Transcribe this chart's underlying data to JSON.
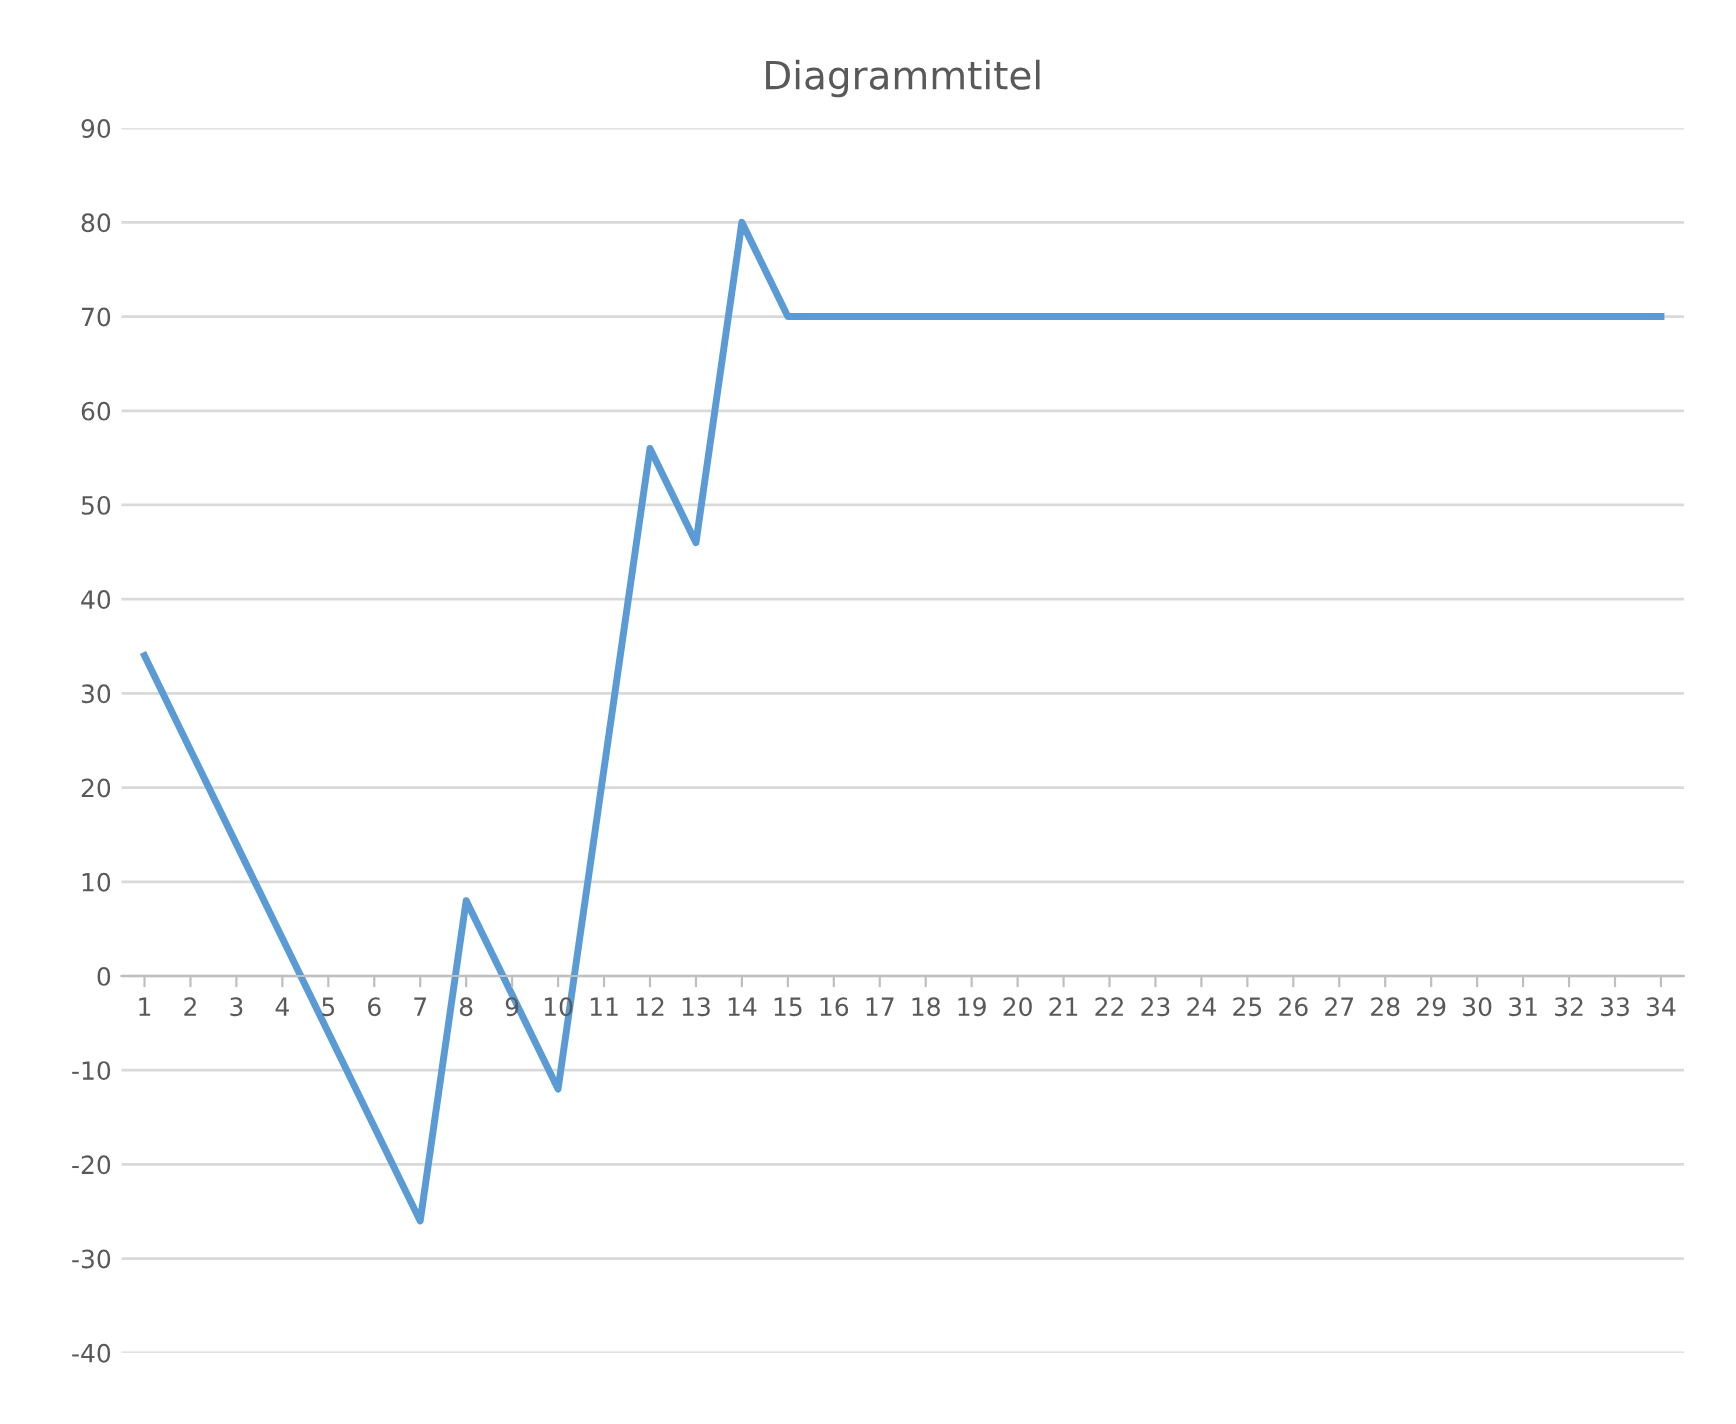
{
  "chart_data": {
    "type": "line",
    "title": "Diagrammtitel",
    "categories": [
      "1",
      "2",
      "3",
      "4",
      "5",
      "6",
      "7",
      "8",
      "9",
      "10",
      "11",
      "12",
      "13",
      "14",
      "15",
      "16",
      "17",
      "18",
      "19",
      "20",
      "21",
      "22",
      "23",
      "24",
      "25",
      "26",
      "27",
      "28",
      "29",
      "30",
      "31",
      "32",
      "33",
      "34"
    ],
    "series": [
      {
        "color": "#5b9bd5",
        "values": [
          34,
          24,
          14,
          4,
          -6,
          -16,
          -26,
          8,
          -2,
          -12,
          22,
          56,
          46,
          80,
          70,
          70,
          70,
          70,
          70,
          70,
          70,
          70,
          70,
          70,
          70,
          70,
          70,
          70,
          70,
          70,
          70,
          70,
          70,
          70
        ]
      }
    ],
    "ylim": [
      -40,
      90
    ],
    "yticks": [
      -40,
      -30,
      -20,
      -10,
      0,
      10,
      20,
      30,
      40,
      50,
      60,
      70,
      80,
      90
    ],
    "grid": "y",
    "legend": false,
    "marker": "none",
    "line_style": "solid"
  }
}
